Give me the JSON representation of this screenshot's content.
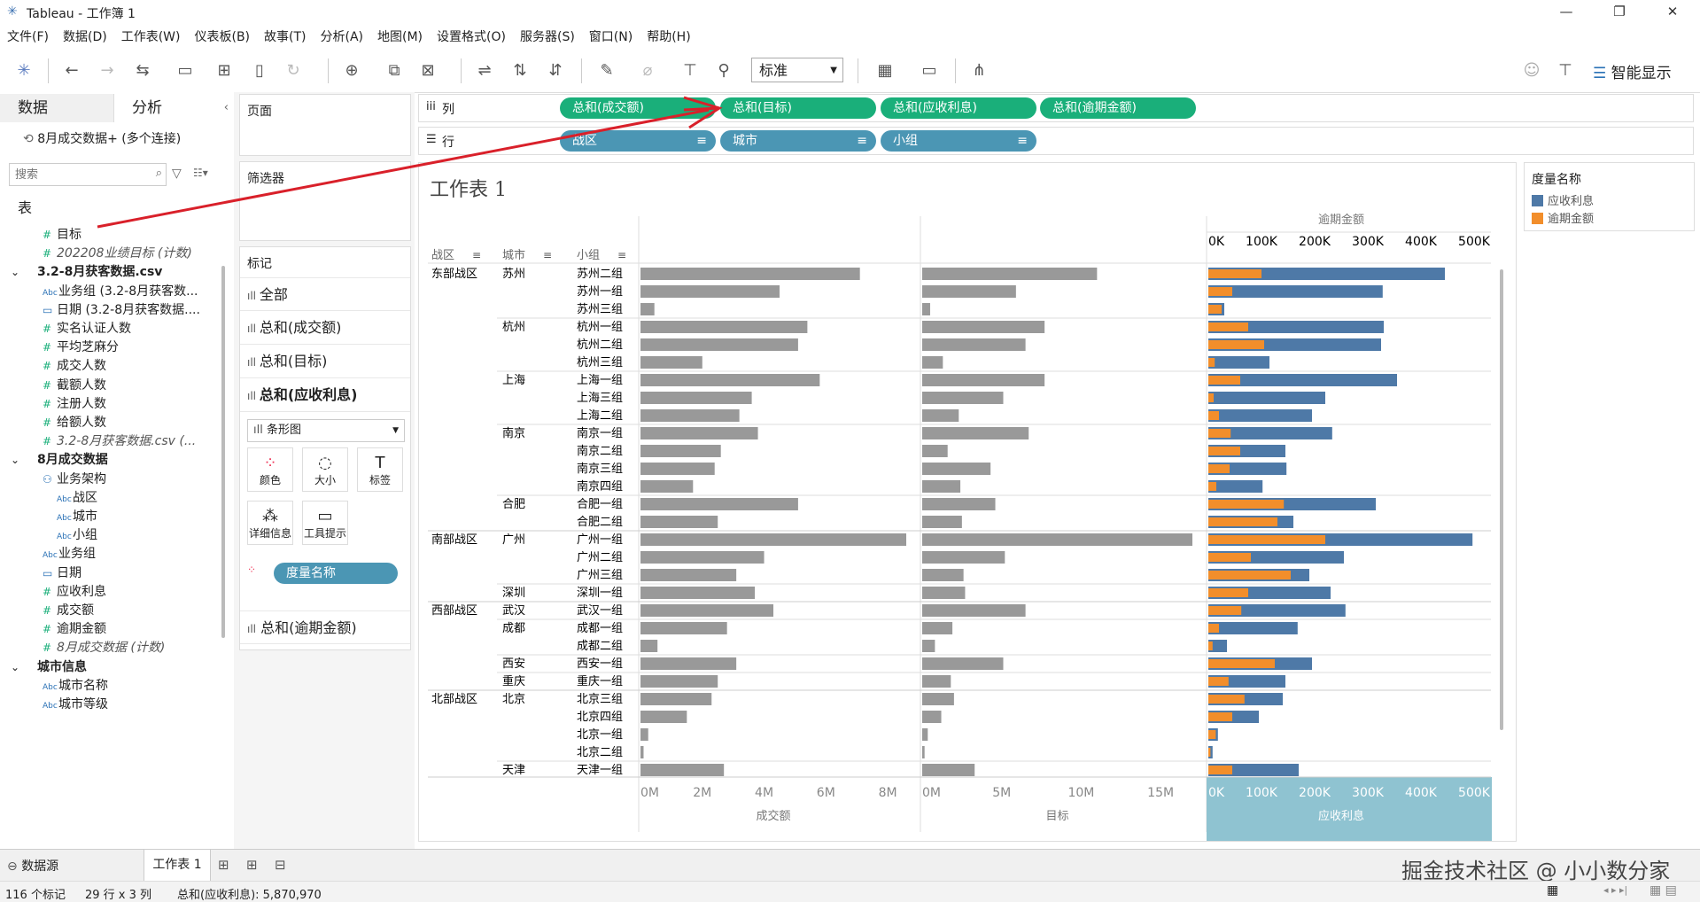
{
  "app": {
    "title": "Tableau - 工作簿 1"
  },
  "menu": [
    "文件(F)",
    "数据(D)",
    "工作表(W)",
    "仪表板(B)",
    "故事(T)",
    "分析(A)",
    "地图(M)",
    "设置格式(O)",
    "服务器(S)",
    "窗口(N)",
    "帮助(H)"
  ],
  "toolbar": {
    "fit_value": "标准",
    "smart_show": "智能显示"
  },
  "left": {
    "tab_data": "数据",
    "tab_analysis": "分析",
    "connection": "8月成交数据+ (多个连接)",
    "search_placeholder": "搜索",
    "table_header": "表",
    "fields": [
      {
        "label": "目标",
        "icon": "hash",
        "indent": 1,
        "italic": false,
        "bold": false
      },
      {
        "label": "202208业绩目标 (计数)",
        "icon": "hash",
        "indent": 1,
        "italic": true,
        "bold": false
      },
      {
        "label": "3.2-8月获客数据.csv",
        "icon": "table",
        "indent": 0,
        "italic": false,
        "bold": true
      },
      {
        "label": "业务组 (3.2-8月获客数...",
        "icon": "abc",
        "indent": 1,
        "italic": false,
        "bold": false
      },
      {
        "label": "日期 (3.2-8月获客数据....",
        "icon": "cal",
        "indent": 1,
        "italic": false,
        "bold": false
      },
      {
        "label": "实名认证人数",
        "icon": "hash",
        "indent": 1,
        "italic": false,
        "bold": false
      },
      {
        "label": "平均芝麻分",
        "icon": "hash",
        "indent": 1,
        "italic": false,
        "bold": false
      },
      {
        "label": "成交人数",
        "icon": "hash",
        "indent": 1,
        "italic": false,
        "bold": false
      },
      {
        "label": "截额人数",
        "icon": "hash",
        "indent": 1,
        "italic": false,
        "bold": false
      },
      {
        "label": "注册人数",
        "icon": "hash",
        "indent": 1,
        "italic": false,
        "bold": false
      },
      {
        "label": "给额人数",
        "icon": "hash",
        "indent": 1,
        "italic": false,
        "bold": false
      },
      {
        "label": "3.2-8月获客数据.csv (...",
        "icon": "hash",
        "indent": 1,
        "italic": true,
        "bold": false
      },
      {
        "label": "8月成交数据",
        "icon": "table",
        "indent": 0,
        "italic": false,
        "bold": true
      },
      {
        "label": "业务架构",
        "icon": "hier",
        "indent": 1,
        "italic": false,
        "bold": false
      },
      {
        "label": "战区",
        "icon": "abc",
        "indent": 2,
        "italic": false,
        "bold": false
      },
      {
        "label": "城市",
        "icon": "abc",
        "indent": 2,
        "italic": false,
        "bold": false
      },
      {
        "label": "小组",
        "icon": "abc",
        "indent": 2,
        "italic": false,
        "bold": false
      },
      {
        "label": "业务组",
        "icon": "abc",
        "indent": 1,
        "italic": false,
        "bold": false
      },
      {
        "label": "日期",
        "icon": "cal",
        "indent": 1,
        "italic": false,
        "bold": false
      },
      {
        "label": "应收利息",
        "icon": "hash",
        "indent": 1,
        "italic": false,
        "bold": false
      },
      {
        "label": "成交额",
        "icon": "hash",
        "indent": 1,
        "italic": false,
        "bold": false
      },
      {
        "label": "逾期金额",
        "icon": "hash",
        "indent": 1,
        "italic": false,
        "bold": false
      },
      {
        "label": "8月成交数据 (计数)",
        "icon": "hash",
        "indent": 1,
        "italic": true,
        "bold": false
      },
      {
        "label": "城市信息",
        "icon": "table",
        "indent": 0,
        "italic": false,
        "bold": true
      },
      {
        "label": "城市名称",
        "icon": "abc",
        "indent": 1,
        "italic": false,
        "bold": false
      },
      {
        "label": "城市等级",
        "icon": "abc",
        "indent": 1,
        "italic": false,
        "bold": false
      }
    ]
  },
  "cards": {
    "pages": "页面",
    "filters": "筛选器",
    "marks": "标记",
    "mark_rows": [
      "全部",
      "总和(成交额)",
      "总和(目标)",
      "总和(应收利息)"
    ],
    "mark_type": "条形图",
    "mark_buttons": [
      "颜色",
      "大小",
      "标签",
      "详细信息",
      "工具提示"
    ],
    "measure_names_pill": "度量名称",
    "last_row": "总和(逾期金额)"
  },
  "shelves": {
    "columns_label": "列",
    "rows_label": "行",
    "columns": [
      "总和(成交额)",
      "总和(目标)",
      "总和(应收利息)",
      "总和(逾期金额)"
    ],
    "rows": [
      "战区",
      "城市",
      "小组"
    ]
  },
  "sheet_title": "工作表 1",
  "legend": {
    "title": "度量名称",
    "items": [
      {
        "label": "应收利息",
        "color": "#4e79a7"
      },
      {
        "label": "逾期金额",
        "color": "#f28e2b"
      }
    ]
  },
  "chart_data": {
    "type": "bar",
    "headers": [
      "战区",
      "城市",
      "小组"
    ],
    "rows": [
      {
        "region": "东部战区",
        "city": "苏州",
        "group": "苏州二组",
        "deal": 7.1,
        "target": 11,
        "interest": 445,
        "overdue": 100
      },
      {
        "region": "",
        "city": "",
        "group": "苏州一组",
        "deal": 4.5,
        "target": 5.9,
        "interest": 328,
        "overdue": 45
      },
      {
        "region": "",
        "city": "",
        "group": "苏州三组",
        "deal": 0.45,
        "target": 0.5,
        "interest": 30,
        "overdue": 25
      },
      {
        "region": "",
        "city": "杭州",
        "group": "杭州一组",
        "deal": 5.4,
        "target": 7.7,
        "interest": 330,
        "overdue": 75
      },
      {
        "region": "",
        "city": "",
        "group": "杭州二组",
        "deal": 5.1,
        "target": 6.5,
        "interest": 325,
        "overdue": 105
      },
      {
        "region": "",
        "city": "",
        "group": "杭州三组",
        "deal": 2.0,
        "target": 1.3,
        "interest": 115,
        "overdue": 12
      },
      {
        "region": "",
        "city": "上海",
        "group": "上海一组",
        "deal": 5.8,
        "target": 7.7,
        "interest": 355,
        "overdue": 60
      },
      {
        "region": "",
        "city": "",
        "group": "上海三组",
        "deal": 3.6,
        "target": 5.1,
        "interest": 220,
        "overdue": 10
      },
      {
        "region": "",
        "city": "",
        "group": "上海二组",
        "deal": 3.2,
        "target": 2.3,
        "interest": 195,
        "overdue": 20
      },
      {
        "region": "",
        "city": "南京",
        "group": "南京一组",
        "deal": 3.8,
        "target": 6.7,
        "interest": 233,
        "overdue": 42
      },
      {
        "region": "",
        "city": "",
        "group": "南京二组",
        "deal": 2.6,
        "target": 1.6,
        "interest": 145,
        "overdue": 60
      },
      {
        "region": "",
        "city": "",
        "group": "南京三组",
        "deal": 2.4,
        "target": 4.3,
        "interest": 147,
        "overdue": 40
      },
      {
        "region": "",
        "city": "",
        "group": "南京四组",
        "deal": 1.7,
        "target": 2.4,
        "interest": 102,
        "overdue": 15
      },
      {
        "region": "",
        "city": "合肥",
        "group": "合肥一组",
        "deal": 5.1,
        "target": 4.6,
        "interest": 315,
        "overdue": 142
      },
      {
        "region": "",
        "city": "",
        "group": "合肥二组",
        "deal": 2.5,
        "target": 2.5,
        "interest": 160,
        "overdue": 130
      },
      {
        "region": "南部战区",
        "city": "广州",
        "group": "广州一组",
        "deal": 8.6,
        "target": 17,
        "interest": 497,
        "overdue": 220
      },
      {
        "region": "",
        "city": "",
        "group": "广州二组",
        "deal": 4.0,
        "target": 5.2,
        "interest": 255,
        "overdue": 80
      },
      {
        "region": "",
        "city": "",
        "group": "广州三组",
        "deal": 3.1,
        "target": 2.6,
        "interest": 190,
        "overdue": 155
      },
      {
        "region": "",
        "city": "深圳",
        "group": "深圳一组",
        "deal": 3.7,
        "target": 2.7,
        "interest": 230,
        "overdue": 75
      },
      {
        "region": "西部战区",
        "city": "武汉",
        "group": "武汉一组",
        "deal": 4.3,
        "target": 6.5,
        "interest": 258,
        "overdue": 62
      },
      {
        "region": "",
        "city": "成都",
        "group": "成都一组",
        "deal": 2.8,
        "target": 1.9,
        "interest": 168,
        "overdue": 20
      },
      {
        "region": "",
        "city": "",
        "group": "成都二组",
        "deal": 0.55,
        "target": 0.8,
        "interest": 35,
        "overdue": 8
      },
      {
        "region": "",
        "city": "西安",
        "group": "西安一组",
        "deal": 3.1,
        "target": 5.1,
        "interest": 195,
        "overdue": 125
      },
      {
        "region": "",
        "city": "重庆",
        "group": "重庆一组",
        "deal": 2.5,
        "target": 1.8,
        "interest": 145,
        "overdue": 38
      },
      {
        "region": "北部战区",
        "city": "北京",
        "group": "北京三组",
        "deal": 2.3,
        "target": 2.0,
        "interest": 140,
        "overdue": 68
      },
      {
        "region": "",
        "city": "",
        "group": "北京四组",
        "deal": 1.5,
        "target": 1.2,
        "interest": 95,
        "overdue": 45
      },
      {
        "region": "",
        "city": "",
        "group": "北京一组",
        "deal": 0.25,
        "target": 0.35,
        "interest": 18,
        "overdue": 14
      },
      {
        "region": "",
        "city": "",
        "group": "北京二组",
        "deal": 0.1,
        "target": 0.15,
        "interest": 8,
        "overdue": 4
      },
      {
        "region": "",
        "city": "天津",
        "group": "天津一组",
        "deal": 2.7,
        "target": 3.3,
        "interest": 170,
        "overdue": 45
      }
    ],
    "panes": [
      {
        "label": "成交额",
        "ticks": [
          "0M",
          "2M",
          "4M",
          "6M",
          "8M"
        ],
        "max": 8.6
      },
      {
        "label": "目标",
        "ticks": [
          "0M",
          "5M",
          "10M",
          "15M"
        ],
        "max": 17
      },
      {
        "label": "应收利息",
        "ticks": [
          "0K",
          "100K",
          "200K",
          "300K",
          "400K",
          "500K"
        ],
        "max": 500,
        "top_label": "逾期金额"
      }
    ]
  },
  "bottom": {
    "datasource": "数据源",
    "sheet_tab": "工作表 1",
    "watermark": "掘金技术社区 @ 小小数分家"
  },
  "status": {
    "marks": "116 个标记",
    "dims": "29 行 x 3 列",
    "sum": "总和(应收利息): 5,870,970"
  }
}
